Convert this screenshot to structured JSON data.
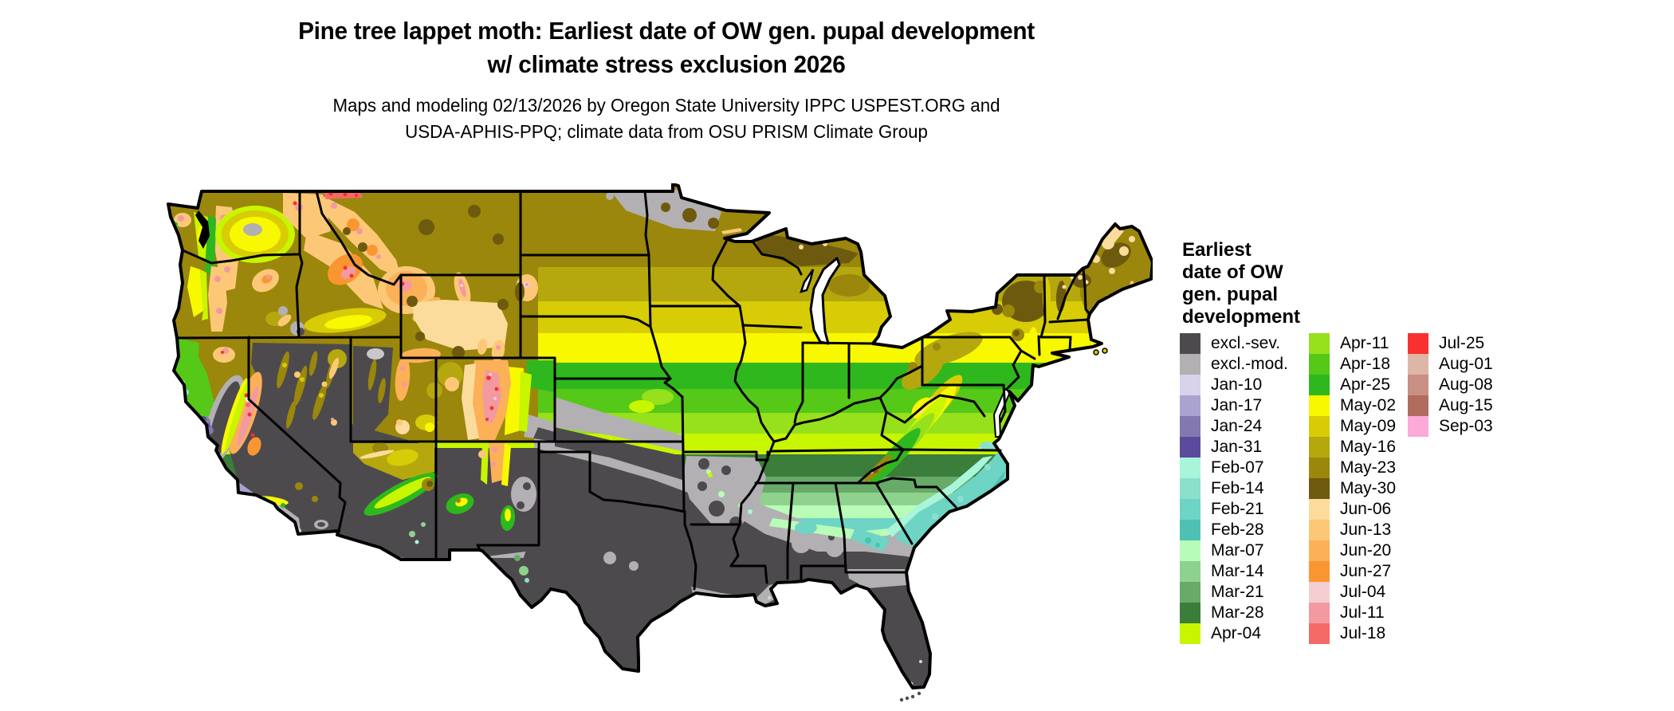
{
  "header": {
    "title": "Pine tree lappet moth: Earliest date of OW gen. pupal development\nw/ climate stress exclusion 2026",
    "subtitle": "Maps and modeling 02/13/2026 by Oregon State University IPPC USPEST.ORG and\nUSDA-APHIS-PPQ; climate data from OSU PRISM Climate Group"
  },
  "legend": {
    "title": "Earliest\ndate of OW\ngen. pupal\ndevelopment",
    "columns": [
      [
        {
          "label": "excl.-sev.",
          "color": "#4d4a4d"
        },
        {
          "label": "excl.-mod.",
          "color": "#b2b0b2"
        },
        {
          "label": "Jan-10",
          "color": "#d8d2ea"
        },
        {
          "label": "Jan-17",
          "color": "#aaa2cf"
        },
        {
          "label": "Jan-24",
          "color": "#8478b0"
        },
        {
          "label": "Jan-31",
          "color": "#5c4b9c"
        },
        {
          "label": "Feb-07",
          "color": "#a8f5da"
        },
        {
          "label": "Feb-14",
          "color": "#8ae0cb"
        },
        {
          "label": "Feb-21",
          "color": "#6ed4c4"
        },
        {
          "label": "Feb-28",
          "color": "#4fc0b4"
        },
        {
          "label": "Mar-07",
          "color": "#b8fcb8"
        },
        {
          "label": "Mar-14",
          "color": "#8ed28e"
        },
        {
          "label": "Mar-21",
          "color": "#68aa68"
        },
        {
          "label": "Mar-28",
          "color": "#3b7d3b"
        },
        {
          "label": "Apr-04",
          "color": "#c8f500"
        }
      ],
      [
        {
          "label": "Apr-11",
          "color": "#97e01c"
        },
        {
          "label": "Apr-18",
          "color": "#55c818"
        },
        {
          "label": "Apr-25",
          "color": "#2eb81e"
        },
        {
          "label": "May-02",
          "color": "#f8f800"
        },
        {
          "label": "May-09",
          "color": "#d8cc06"
        },
        {
          "label": "May-16",
          "color": "#b4a80e"
        },
        {
          "label": "May-23",
          "color": "#9a870b"
        },
        {
          "label": "May-30",
          "color": "#6e5a0e"
        },
        {
          "label": "Jun-06",
          "color": "#fcdc9c"
        },
        {
          "label": "Jun-13",
          "color": "#fcc878"
        },
        {
          "label": "Jun-20",
          "color": "#fcb058"
        },
        {
          "label": "Jun-27",
          "color": "#fa9632"
        },
        {
          "label": "Jul-04",
          "color": "#f5ced2"
        },
        {
          "label": "Jul-11",
          "color": "#f29aa0"
        },
        {
          "label": "Jul-18",
          "color": "#f56a66"
        }
      ],
      [
        {
          "label": "Jul-25",
          "color": "#f93030"
        },
        {
          "label": "Aug-01",
          "color": "#ddb6a8"
        },
        {
          "label": "Aug-08",
          "color": "#c89084"
        },
        {
          "label": "Aug-15",
          "color": "#b06c5c"
        },
        {
          "label": "Sep-03",
          "color": "#fcaad8"
        }
      ]
    ]
  },
  "map": {
    "outline_color": "#000000",
    "water_color": "#ffffff"
  }
}
